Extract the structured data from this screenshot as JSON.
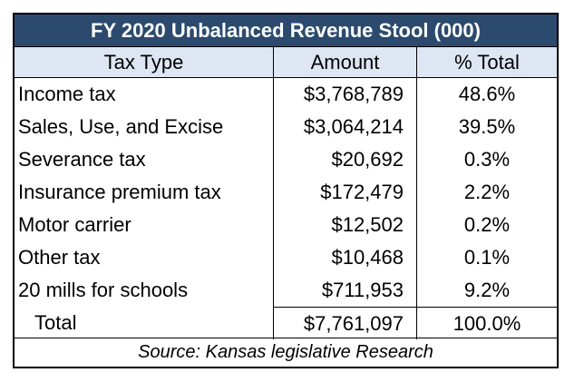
{
  "title": "FY 2020 Unbalanced Revenue Stool (000)",
  "headers": {
    "tax_type": "Tax Type",
    "amount": "Amount",
    "pct_total": "% Total"
  },
  "rows": [
    {
      "tax_type": "Income tax",
      "amount": "$3,768,789",
      "pct": "48.6%"
    },
    {
      "tax_type": "Sales, Use, and Excise",
      "amount": "$3,064,214",
      "pct": "39.5%"
    },
    {
      "tax_type": "Severance tax",
      "amount": "$20,692",
      "pct": "0.3%"
    },
    {
      "tax_type": "Insurance premium tax",
      "amount": "$172,479",
      "pct": "2.2%"
    },
    {
      "tax_type": "Motor carrier",
      "amount": "$12,502",
      "pct": "0.2%"
    },
    {
      "tax_type": "Other tax",
      "amount": "$10,468",
      "pct": "0.1%"
    },
    {
      "tax_type": "20 mills for schools",
      "amount": "$711,953",
      "pct": "9.2%"
    }
  ],
  "total": {
    "label": "Total",
    "amount": "$7,761,097",
    "pct": "100.0%"
  },
  "source": "Source: Kansas legislative Research",
  "colors": {
    "title_bg": "#2b4a6e",
    "header_bg": "#dde6f2"
  }
}
